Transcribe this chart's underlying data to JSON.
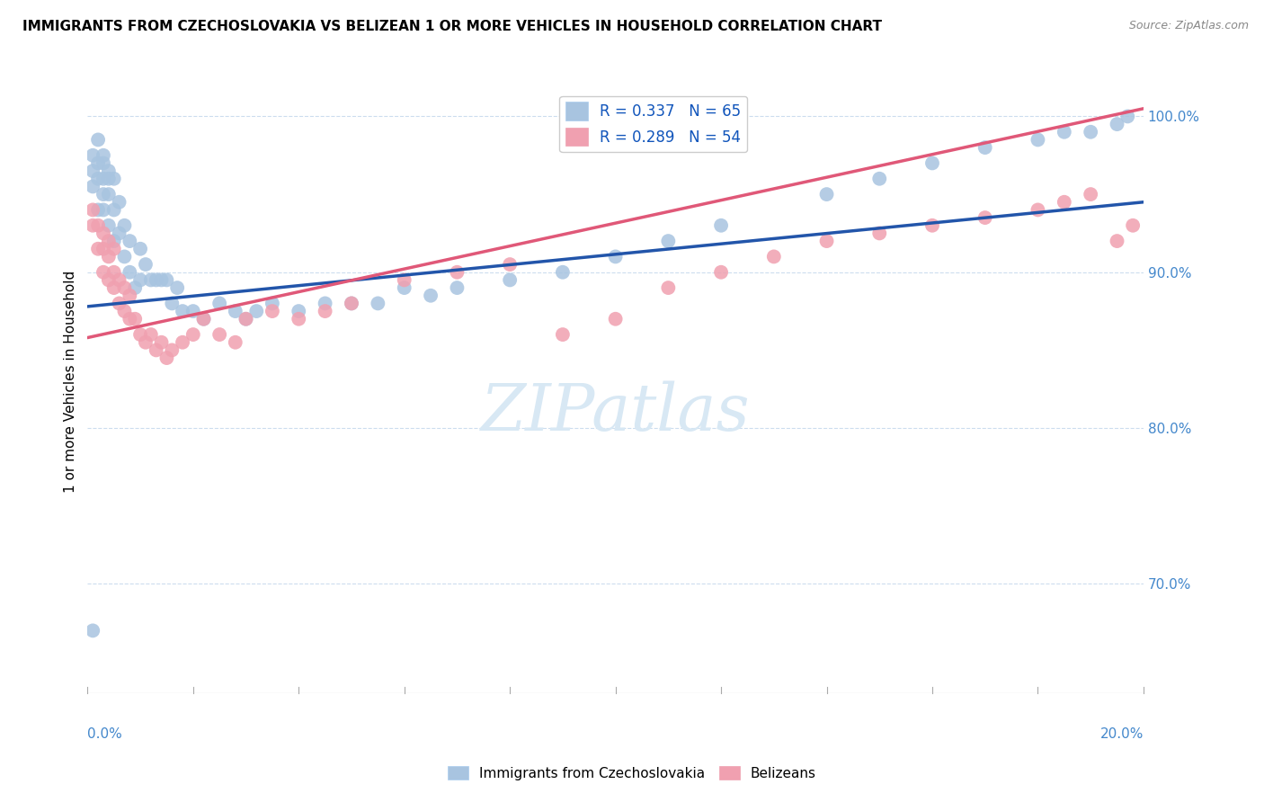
{
  "title": "IMMIGRANTS FROM CZECHOSLOVAKIA VS BELIZEAN 1 OR MORE VEHICLES IN HOUSEHOLD CORRELATION CHART",
  "source": "Source: ZipAtlas.com",
  "ylabel": "1 or more Vehicles in Household",
  "y_ticks": [
    "70.0%",
    "80.0%",
    "90.0%",
    "100.0%"
  ],
  "y_tick_vals": [
    0.7,
    0.8,
    0.9,
    1.0
  ],
  "xlim": [
    0.0,
    0.2
  ],
  "ylim": [
    0.63,
    1.03
  ],
  "legend1_R": "0.337",
  "legend1_N": "65",
  "legend2_R": "0.289",
  "legend2_N": "54",
  "blue_color": "#a8c4e0",
  "blue_line_color": "#2255aa",
  "pink_color": "#f0a0b0",
  "pink_line_color": "#e05878",
  "legend_label1": "Immigrants from Czechoslovakia",
  "legend_label2": "Belizeans",
  "blue_x": [
    0.001,
    0.001,
    0.001,
    0.002,
    0.002,
    0.002,
    0.002,
    0.003,
    0.003,
    0.003,
    0.003,
    0.003,
    0.004,
    0.004,
    0.004,
    0.004,
    0.005,
    0.005,
    0.005,
    0.006,
    0.006,
    0.007,
    0.007,
    0.008,
    0.008,
    0.009,
    0.01,
    0.01,
    0.011,
    0.012,
    0.013,
    0.014,
    0.015,
    0.016,
    0.017,
    0.018,
    0.02,
    0.022,
    0.025,
    0.028,
    0.03,
    0.032,
    0.035,
    0.04,
    0.045,
    0.05,
    0.055,
    0.06,
    0.065,
    0.07,
    0.08,
    0.09,
    0.1,
    0.11,
    0.12,
    0.14,
    0.15,
    0.16,
    0.17,
    0.18,
    0.185,
    0.19,
    0.195,
    0.197,
    0.001
  ],
  "blue_y": [
    0.955,
    0.965,
    0.975,
    0.94,
    0.96,
    0.97,
    0.985,
    0.94,
    0.95,
    0.96,
    0.97,
    0.975,
    0.93,
    0.95,
    0.96,
    0.965,
    0.92,
    0.94,
    0.96,
    0.925,
    0.945,
    0.91,
    0.93,
    0.9,
    0.92,
    0.89,
    0.895,
    0.915,
    0.905,
    0.895,
    0.895,
    0.895,
    0.895,
    0.88,
    0.89,
    0.875,
    0.875,
    0.87,
    0.88,
    0.875,
    0.87,
    0.875,
    0.88,
    0.875,
    0.88,
    0.88,
    0.88,
    0.89,
    0.885,
    0.89,
    0.895,
    0.9,
    0.91,
    0.92,
    0.93,
    0.95,
    0.96,
    0.97,
    0.98,
    0.985,
    0.99,
    0.99,
    0.995,
    1.0,
    0.67
  ],
  "pink_x": [
    0.001,
    0.001,
    0.002,
    0.002,
    0.003,
    0.003,
    0.003,
    0.004,
    0.004,
    0.004,
    0.005,
    0.005,
    0.005,
    0.006,
    0.006,
    0.007,
    0.007,
    0.008,
    0.008,
    0.009,
    0.01,
    0.011,
    0.012,
    0.013,
    0.014,
    0.015,
    0.016,
    0.018,
    0.02,
    0.022,
    0.025,
    0.028,
    0.03,
    0.035,
    0.04,
    0.045,
    0.05,
    0.06,
    0.07,
    0.08,
    0.09,
    0.1,
    0.11,
    0.12,
    0.13,
    0.14,
    0.15,
    0.16,
    0.17,
    0.18,
    0.185,
    0.19,
    0.195,
    0.198
  ],
  "pink_y": [
    0.93,
    0.94,
    0.915,
    0.93,
    0.9,
    0.915,
    0.925,
    0.895,
    0.91,
    0.92,
    0.89,
    0.9,
    0.915,
    0.88,
    0.895,
    0.875,
    0.89,
    0.87,
    0.885,
    0.87,
    0.86,
    0.855,
    0.86,
    0.85,
    0.855,
    0.845,
    0.85,
    0.855,
    0.86,
    0.87,
    0.86,
    0.855,
    0.87,
    0.875,
    0.87,
    0.875,
    0.88,
    0.895,
    0.9,
    0.905,
    0.86,
    0.87,
    0.89,
    0.9,
    0.91,
    0.92,
    0.925,
    0.93,
    0.935,
    0.94,
    0.945,
    0.95,
    0.92,
    0.93
  ],
  "blue_line_x0": 0.0,
  "blue_line_x1": 0.2,
  "blue_line_y0": 0.878,
  "blue_line_y1": 0.945,
  "pink_line_x0": 0.0,
  "pink_line_x1": 0.2,
  "pink_line_y0": 0.858,
  "pink_line_y1": 1.005
}
